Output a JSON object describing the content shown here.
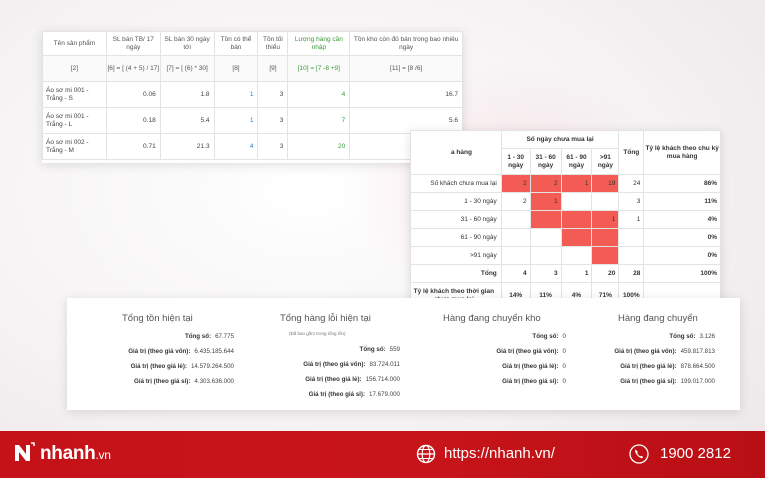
{
  "inventory_table": {
    "headers": [
      "Tên sản phẩm",
      "SL bán TB/ 17 ngày",
      "SL bán 30 ngày tới",
      "Tồn có thể bán",
      "Tồn tối thiểu",
      "Lượng hàng cần nhập",
      "Tồn kho còn đủ bán trong bao nhiêu ngày"
    ],
    "formulas": [
      "[2]",
      "[6] = [ (4 + 5) / 17]",
      "[7] = [ (6) * 30]",
      "[8]",
      "[9]",
      "[10] = [7 -8 +9]",
      "[11] = [8 /6]"
    ],
    "rows": [
      {
        "name": "Áo sơ mi 001 - Trắng - S",
        "avg": "0.06",
        "next30": "1.8",
        "available": "1",
        "min": "3",
        "need": "4",
        "days": "16.7"
      },
      {
        "name": "Áo sơ mi 001 - Trắng - L",
        "avg": "0.18",
        "next30": "5.4",
        "available": "1",
        "min": "3",
        "need": "7",
        "days": "5.6"
      },
      {
        "name": "Áo sơ mi 002 - Trắng - M",
        "avg": "0.71",
        "next30": "21.3",
        "available": "4",
        "min": "3",
        "need": "20",
        "days": "5.6"
      }
    ]
  },
  "retention_table": {
    "group_header": "Số ngày chưa mua lại",
    "first_header": "a hàng",
    "sub_headers": [
      "1 - 30 ngày",
      "31 - 60 ngày",
      "61 - 90 ngày",
      ">91 ngày"
    ],
    "total_header": "Tổng",
    "ratio_header": "Tỷ lệ khách theo chu kỳ mua hàng",
    "rows": [
      {
        "label": "Số khách chưa mua lại",
        "cells": [
          "2",
          "2",
          "1",
          "19"
        ],
        "total": "24",
        "ratio": "86%"
      },
      {
        "label": "1 - 30 ngày",
        "cells": [
          "2",
          "1",
          "",
          ""
        ],
        "total": "3",
        "ratio": "11%"
      },
      {
        "label": "31 - 60 ngày",
        "cells": [
          "",
          "",
          "",
          "1"
        ],
        "total": "1",
        "ratio": "4%"
      },
      {
        "label": "61 - 90 ngày",
        "cells": [
          "",
          "",
          "",
          ""
        ],
        "total": "",
        "ratio": "0%"
      },
      {
        "label": ">91 ngày",
        "cells": [
          "",
          "",
          "",
          ""
        ],
        "total": "",
        "ratio": "0%"
      }
    ],
    "total_row": {
      "label": "Tổng",
      "cells": [
        "4",
        "3",
        "1",
        "20"
      ],
      "total": "28",
      "ratio": "100%"
    },
    "ratio_row": {
      "label": "Tỷ lệ khách theo thời gian chưa mua lại",
      "cells": [
        "14%",
        "11%",
        "4%",
        "71%"
      ],
      "total": "100%",
      "ratio": ""
    }
  },
  "summary": {
    "col1": {
      "title": "Tổng tồn hiện tại",
      "items": [
        {
          "k": "Tổng số:",
          "v": "67.775"
        },
        {
          "k": "Giá trị (theo giá vốn):",
          "v": "6.435.185.644"
        },
        {
          "k": "Giá trị (theo giá lẻ):",
          "v": "14.579.264.500"
        },
        {
          "k": "Giá trị (theo giá sỉ):",
          "v": "4.303.636.000"
        }
      ]
    },
    "col2": {
      "title": "Tổng hàng lỗi hiện tại",
      "note": "(Đã bao gồm trong tổng tồn)",
      "items": [
        {
          "k": "Tổng số:",
          "v": "559"
        },
        {
          "k": "Giá trị (theo giá vốn):",
          "v": "83.724.011"
        },
        {
          "k": "Giá trị (theo giá lẻ):",
          "v": "156.714.000"
        },
        {
          "k": "Giá trị (theo giá sỉ):",
          "v": "17.679.000"
        }
      ]
    },
    "col3": {
      "title": "Hàng đang chuyển kho",
      "items": [
        {
          "k": "Tổng số:",
          "v": "0"
        },
        {
          "k": "Giá trị (theo giá vốn):",
          "v": "0"
        },
        {
          "k": "Giá trị (theo giá lẻ):",
          "v": "0"
        },
        {
          "k": "Giá trị (theo giá sỉ):",
          "v": "0"
        }
      ]
    },
    "col4": {
      "title": "Hàng đang chuyển",
      "items": [
        {
          "k": "Tổng số:",
          "v": "3.126"
        },
        {
          "k": "Giá trị (theo giá vốn):",
          "v": "459.817.813"
        },
        {
          "k": "Giá trị (theo giá lẻ):",
          "v": "878.664.500"
        },
        {
          "k": "Giá trị (theo giá sỉ):",
          "v": "199.017.000"
        }
      ]
    }
  },
  "footer": {
    "brand": "nhanh",
    "tld": ".vn",
    "website": "https://nhanh.vn/",
    "phone": "1900 2812"
  },
  "colors": {
    "footer_red": "#c41218",
    "heat_red": "#f25c54",
    "need_green": "#3a9a3a",
    "available_blue": "#2a7fd4"
  }
}
